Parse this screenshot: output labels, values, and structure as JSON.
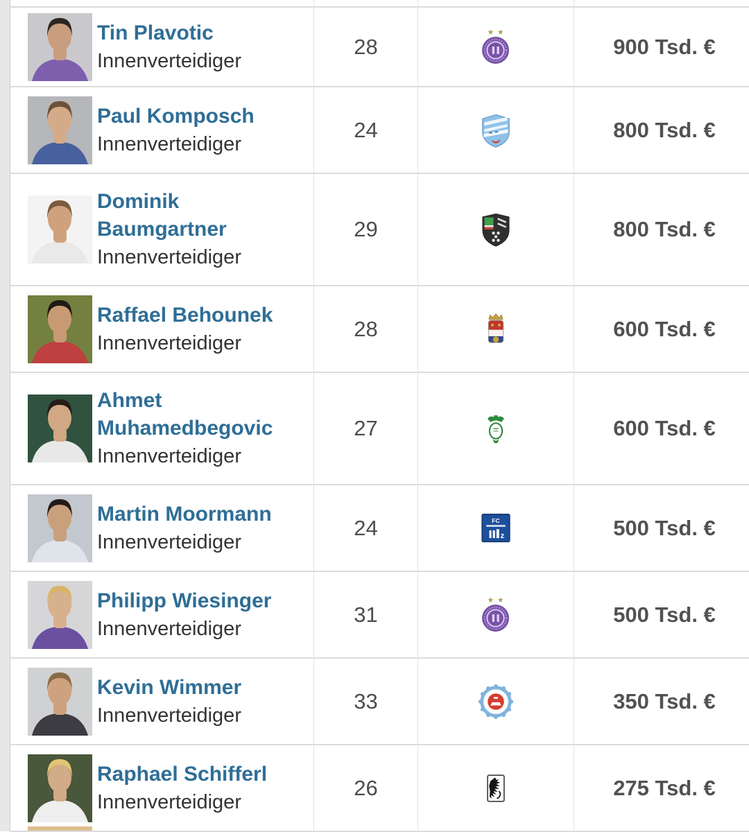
{
  "colors": {
    "link_blue": "#2f6e96",
    "position_text": "#333333",
    "age_text": "#4b4d4f",
    "value_text": "#515254",
    "row_border": "#dcdcdc",
    "column_border": "#e3e3e3",
    "page_gutter_bg": "#e7e7e7",
    "gutter_border": "#cfcfcf",
    "table_bg": "#ffffff",
    "next_photo_edge": "#ddbe8e"
  },
  "rows": [
    {
      "name": "Tin Plavotic",
      "name_lines": [
        "Tin Plavotic"
      ],
      "position": "Innenverteidiger",
      "age": "28",
      "market_value": "900 Tsd. €",
      "club_icon": "austria-wien-purple-circle-two-stars",
      "club_color": "#7b51ad",
      "portrait": {
        "bg": "#c9c9cd",
        "hair": "#2e2622",
        "skin": "#c99e7e",
        "shirt": "#7d5fae"
      }
    },
    {
      "name": "Paul Komposch",
      "name_lines": [
        "Paul Komposch"
      ],
      "position": "Innenverteidiger",
      "age": "24",
      "market_value": "800 Tsd. €",
      "club_icon": "hartberg-light-blue-shield",
      "club_color": "#8fc2e9",
      "portrait": {
        "bg": "#b6b7ba",
        "hair": "#6d5138",
        "skin": "#d4ab89",
        "shirt": "#47619e"
      }
    },
    {
      "name": "Dominik Baumgartner",
      "name_lines": [
        "Dominik",
        "Baumgartner"
      ],
      "position": "Innenverteidiger",
      "age": "29",
      "market_value": "800 Tsd. €",
      "club_icon": "wsg-tirol-black-shield",
      "club_color": "#2f2f2f",
      "portrait": {
        "bg": "#f3f3f3",
        "hair": "#7d5c3c",
        "skin": "#cfa17d",
        "shirt": "#e9e9e9"
      }
    },
    {
      "name": "Raffael Behounek",
      "name_lines": [
        "Raffael Behounek"
      ],
      "position": "Innenverteidiger",
      "age": "28",
      "market_value": "600 Tsd. €",
      "club_icon": "willem-ii-crown-crest",
      "club_color": "#c0392e",
      "portrait": {
        "bg": "#74803f",
        "hair": "#201915",
        "skin": "#c89a74",
        "shirt": "#bf4040"
      }
    },
    {
      "name": "Ahmet Muhamedbegovic",
      "name_lines": [
        "Ahmet",
        "Muhamedbegovic"
      ],
      "position": "Innenverteidiger",
      "age": "27",
      "market_value": "600 Tsd. €",
      "club_icon": "sv-ried-green-crest",
      "club_color": "#2e8a3e",
      "portrait": {
        "bg": "#30523f",
        "hair": "#241c17",
        "skin": "#d0a884",
        "shirt": "#e8e8e8"
      }
    },
    {
      "name": "Martin Moormann",
      "name_lines": [
        "Martin Moormann"
      ],
      "position": "Innenverteidiger",
      "age": "24",
      "market_value": "500 Tsd. €",
      "club_icon": "blau-weiss-linz-blue-square",
      "club_color": "#1d4f9c",
      "portrait": {
        "bg": "#c3c8cf",
        "hair": "#221b16",
        "skin": "#c9a07c",
        "shirt": "#dfe3ea"
      }
    },
    {
      "name": "Philipp Wiesinger",
      "name_lines": [
        "Philipp Wiesinger"
      ],
      "position": "Innenverteidiger",
      "age": "31",
      "market_value": "500 Tsd. €",
      "club_icon": "austria-wien-purple-circle-two-stars",
      "club_color": "#7b51ad",
      "portrait": {
        "bg": "#d6d6d8",
        "hair": "#d8b469",
        "skin": "#d7b08d",
        "shirt": "#6b50a0"
      }
    },
    {
      "name": "Kevin Wimmer",
      "name_lines": [
        "Kevin Wimmer"
      ],
      "position": "Innenverteidiger",
      "age": "33",
      "market_value": "350 Tsd. €",
      "club_icon": "podbrezova-blue-red-round",
      "club_color": "#7fb3dc",
      "portrait": {
        "bg": "#d0d1d3",
        "hair": "#8a6b47",
        "skin": "#cfa27f",
        "shirt": "#3c3c42"
      }
    },
    {
      "name": "Raphael Schifferl",
      "name_lines": [
        "Raphael Schifferl"
      ],
      "position": "Innenverteidiger",
      "age": "26",
      "market_value": "275 Tsd. €",
      "club_icon": "1860-muenchen-lion-shield",
      "club_color": "#fdfdfd",
      "portrait": {
        "bg": "#49573a",
        "hair": "#e2c676",
        "skin": "#d2ab87",
        "shirt": "#eeeeee"
      }
    }
  ]
}
